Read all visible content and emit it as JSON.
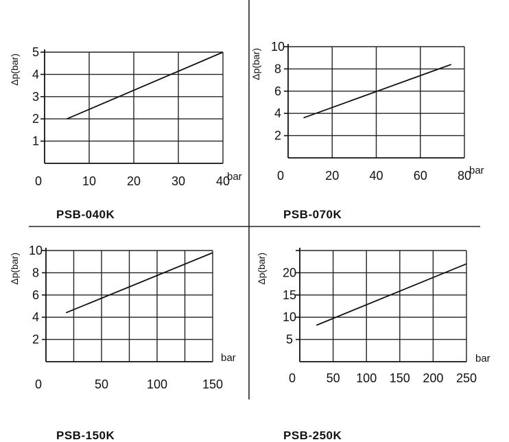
{
  "chart_data": [
    {
      "type": "line",
      "title": "PSB-040K",
      "ylabel": "Δp(bar)",
      "xlabel": "bar",
      "xlim": [
        0,
        40
      ],
      "ylim": [
        0,
        5
      ],
      "x_ticks": [
        "0",
        "10",
        "20",
        "30",
        "40"
      ],
      "y_ticks": [
        "1",
        "2",
        "3",
        "4",
        "5"
      ],
      "grid": true,
      "series": [
        {
          "x": [
            5,
            40
          ],
          "y": [
            2.0,
            5.0
          ]
        }
      ]
    },
    {
      "type": "line",
      "title": "PSB-070K",
      "ylabel": "Δp(bar)",
      "xlabel": "bar",
      "xlim": [
        0,
        80
      ],
      "ylim": [
        0,
        10
      ],
      "x_ticks": [
        "0",
        "20",
        "40",
        "60",
        "80"
      ],
      "y_ticks": [
        "2",
        "4",
        "6",
        "8",
        "10"
      ],
      "grid": true,
      "series": [
        {
          "x": [
            7,
            74
          ],
          "y": [
            3.6,
            8.4
          ]
        }
      ]
    },
    {
      "type": "line",
      "title": "PSB-150K",
      "ylabel": "Δp(bar)",
      "xlabel": "bar",
      "xlim": [
        0,
        150
      ],
      "ylim": [
        0,
        10
      ],
      "x_ticks": [
        "0",
        "50",
        "100",
        "150"
      ],
      "y_ticks": [
        "2",
        "4",
        "6",
        "8",
        "10"
      ],
      "grid": true,
      "series": [
        {
          "x": [
            18,
            150
          ],
          "y": [
            4.4,
            9.8
          ]
        }
      ]
    },
    {
      "type": "line",
      "title": "PSB-250K",
      "ylabel": "Δp(bar)",
      "xlabel": "bar",
      "xlim": [
        0,
        250
      ],
      "ylim": [
        0,
        25
      ],
      "x_ticks": [
        "0",
        "50",
        "100",
        "150",
        "200",
        "250"
      ],
      "y_ticks": [
        "5",
        "10",
        "15",
        "20"
      ],
      "grid": true,
      "series": [
        {
          "x": [
            25,
            250
          ],
          "y": [
            8.2,
            22.0
          ]
        }
      ]
    }
  ]
}
